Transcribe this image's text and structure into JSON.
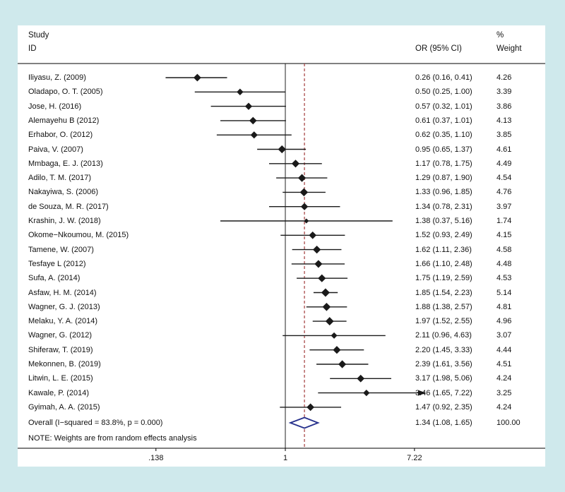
{
  "colors": {
    "background": "#cfe9ec",
    "panel": "#ffffff",
    "line": "#000000",
    "marker": "#1a1a1a",
    "overall_diamond": "#26308c",
    "overall_estimate_line": "#a33c3c"
  },
  "header": {
    "study_line1": "Study",
    "study_line2": "ID",
    "or_col": "OR (95% CI)",
    "weight_line1": "%",
    "weight_line2": "Weight"
  },
  "note": "NOTE: Weights are from random effects analysis",
  "axis": {
    "scale": "log",
    "ticks": [
      {
        "label": ".138",
        "value": 0.138
      },
      {
        "label": "1",
        "value": 1
      },
      {
        "label": "7.22",
        "value": 7.22
      }
    ]
  },
  "chart_data": {
    "type": "forest",
    "title": "",
    "xlabel": "",
    "x_range": [
      0.138,
      7.22
    ],
    "null_value": 1,
    "studies": [
      {
        "id": "Iliyasu, Z. (2009)",
        "or": 0.26,
        "ci_low": 0.16,
        "ci_high": 0.41,
        "or_label": "0.26 (0.16, 0.41)",
        "weight": 4.26,
        "weight_label": "4.26"
      },
      {
        "id": "Oladapo, O. T. (2005)",
        "or": 0.5,
        "ci_low": 0.25,
        "ci_high": 1.0,
        "or_label": "0.50 (0.25, 1.00)",
        "weight": 3.39,
        "weight_label": "3.39"
      },
      {
        "id": "Jose, H. (2016)",
        "or": 0.57,
        "ci_low": 0.32,
        "ci_high": 1.01,
        "or_label": "0.57 (0.32, 1.01)",
        "weight": 3.86,
        "weight_label": "3.86"
      },
      {
        "id": "Alemayehu B (2012)",
        "or": 0.61,
        "ci_low": 0.37,
        "ci_high": 1.01,
        "or_label": "0.61 (0.37, 1.01)",
        "weight": 4.13,
        "weight_label": "4.13"
      },
      {
        "id": "Erhabor, O. (2012)",
        "or": 0.62,
        "ci_low": 0.35,
        "ci_high": 1.1,
        "or_label": "0.62 (0.35, 1.10)",
        "weight": 3.85,
        "weight_label": "3.85"
      },
      {
        "id": "Paiva, V. (2007)",
        "or": 0.95,
        "ci_low": 0.65,
        "ci_high": 1.37,
        "or_label": "0.95 (0.65, 1.37)",
        "weight": 4.61,
        "weight_label": "4.61"
      },
      {
        "id": "Mmbaga, E. J. (2013)",
        "or": 1.17,
        "ci_low": 0.78,
        "ci_high": 1.75,
        "or_label": "1.17 (0.78, 1.75)",
        "weight": 4.49,
        "weight_label": "4.49"
      },
      {
        "id": "Adilo, T. M. (2017)",
        "or": 1.29,
        "ci_low": 0.87,
        "ci_high": 1.9,
        "or_label": "1.29 (0.87, 1.90)",
        "weight": 4.54,
        "weight_label": "4.54"
      },
      {
        "id": "Nakayiwa, S. (2006)",
        "or": 1.33,
        "ci_low": 0.96,
        "ci_high": 1.85,
        "or_label": "1.33 (0.96, 1.85)",
        "weight": 4.76,
        "weight_label": "4.76"
      },
      {
        "id": "de Souza, M. R. (2017)",
        "or": 1.34,
        "ci_low": 0.78,
        "ci_high": 2.31,
        "or_label": "1.34 (0.78, 2.31)",
        "weight": 3.97,
        "weight_label": "3.97"
      },
      {
        "id": "Krashin, J. W. (2018)",
        "or": 1.38,
        "ci_low": 0.37,
        "ci_high": 5.16,
        "or_label": "1.38 (0.37, 5.16)",
        "weight": 1.74,
        "weight_label": "1.74"
      },
      {
        "id": "Okome−Nkoumou, M. (2015)",
        "or": 1.52,
        "ci_low": 0.93,
        "ci_high": 2.49,
        "or_label": "1.52 (0.93, 2.49)",
        "weight": 4.15,
        "weight_label": "4.15"
      },
      {
        "id": "Tamene, W. (2007)",
        "or": 1.62,
        "ci_low": 1.11,
        "ci_high": 2.36,
        "or_label": "1.62 (1.11, 2.36)",
        "weight": 4.58,
        "weight_label": "4.58"
      },
      {
        "id": "Tesfaye L (2012)",
        "or": 1.66,
        "ci_low": 1.1,
        "ci_high": 2.48,
        "or_label": "1.66 (1.10, 2.48)",
        "weight": 4.48,
        "weight_label": "4.48"
      },
      {
        "id": "Sufa, A. (2014)",
        "or": 1.75,
        "ci_low": 1.19,
        "ci_high": 2.59,
        "or_label": "1.75 (1.19, 2.59)",
        "weight": 4.53,
        "weight_label": "4.53"
      },
      {
        "id": "Asfaw, H. M. (2014)",
        "or": 1.85,
        "ci_low": 1.54,
        "ci_high": 2.23,
        "or_label": "1.85 (1.54, 2.23)",
        "weight": 5.14,
        "weight_label": "5.14"
      },
      {
        "id": "Wagner, G. J. (2013)",
        "or": 1.88,
        "ci_low": 1.38,
        "ci_high": 2.57,
        "or_label": "1.88 (1.38, 2.57)",
        "weight": 4.81,
        "weight_label": "4.81"
      },
      {
        "id": "Melaku, Y. A. (2014)",
        "or": 1.97,
        "ci_low": 1.52,
        "ci_high": 2.55,
        "or_label": "1.97 (1.52, 2.55)",
        "weight": 4.96,
        "weight_label": "4.96"
      },
      {
        "id": "Wagner, G. (2012)",
        "or": 2.11,
        "ci_low": 0.96,
        "ci_high": 4.63,
        "or_label": "2.11 (0.96, 4.63)",
        "weight": 3.07,
        "weight_label": "3.07"
      },
      {
        "id": "Shiferaw, T. (2019)",
        "or": 2.2,
        "ci_low": 1.45,
        "ci_high": 3.33,
        "or_label": "2.20 (1.45, 3.33)",
        "weight": 4.44,
        "weight_label": "4.44"
      },
      {
        "id": "Mekonnen, B. (2019)",
        "or": 2.39,
        "ci_low": 1.61,
        "ci_high": 3.56,
        "or_label": "2.39 (1.61, 3.56)",
        "weight": 4.51,
        "weight_label": "4.51"
      },
      {
        "id": "Litwin, L. E. (2015)",
        "or": 3.17,
        "ci_low": 1.98,
        "ci_high": 5.06,
        "or_label": "3.17 (1.98, 5.06)",
        "weight": 4.24,
        "weight_label": "4.24"
      },
      {
        "id": "Kawale, P. (2014)",
        "or": 3.46,
        "ci_low": 1.65,
        "ci_high": 7.22,
        "or_label": "3.46 (1.65, 7.22)",
        "weight": 3.25,
        "weight_label": "3.25",
        "arrow": true
      },
      {
        "id": "Gyimah, A. A. (2015)",
        "or": 1.47,
        "ci_low": 0.92,
        "ci_high": 2.35,
        "or_label": "1.47 (0.92, 2.35)",
        "weight": 4.24,
        "weight_label": "4.24"
      }
    ],
    "overall": {
      "label": "Overall  (I−squared = 83.8%, p = 0.000)",
      "or": 1.34,
      "ci_low": 1.08,
      "ci_high": 1.65,
      "or_label": "1.34 (1.08, 1.65)",
      "weight_label": "100.00"
    }
  }
}
